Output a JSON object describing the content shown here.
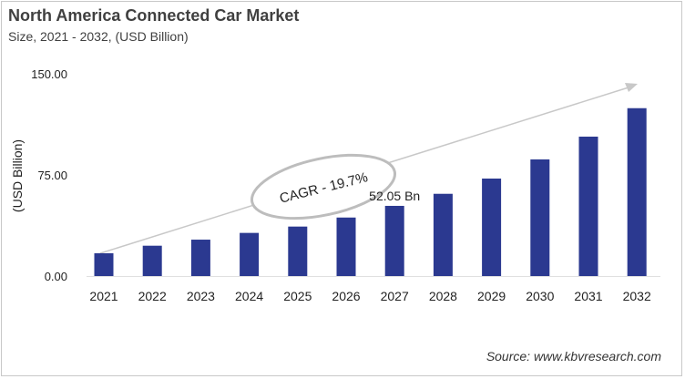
{
  "title": "North America Connected Car Market",
  "subtitle": "Size, 2021 - 2032, (USD Billion)",
  "source": "Source: www.kbvresearch.com",
  "chart_data": {
    "type": "bar",
    "title": "North America Connected Car Market",
    "subtitle": "Size, 2021 - 2032, (USD Billion)",
    "xlabel": "",
    "ylabel": "(USD Billion)",
    "ylim": [
      0,
      150
    ],
    "yticks": [
      "0.00",
      "75.00",
      "150.00"
    ],
    "categories": [
      "2021",
      "2022",
      "2023",
      "2024",
      "2025",
      "2026",
      "2027",
      "2028",
      "2029",
      "2030",
      "2031",
      "2032"
    ],
    "values": [
      16.9,
      22.5,
      27.0,
      32.0,
      36.7,
      43.4,
      52.05,
      61.0,
      72.3,
      86.5,
      103.4,
      124.5
    ],
    "data_labels": [
      {
        "category": "2027",
        "text": "52.05 Bn"
      }
    ],
    "annotation": "CAGR - 19.7%",
    "bar_color": "#2b3990",
    "grid": false,
    "legend": "none"
  }
}
